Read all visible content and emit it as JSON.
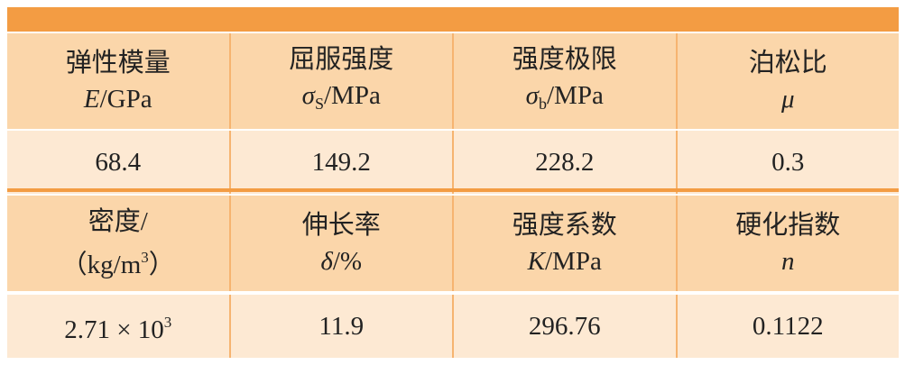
{
  "table": {
    "groups": [
      {
        "names": [
          "弹性模量",
          "屈服强度",
          "强度极限",
          "泊松比"
        ],
        "units": [
          [
            {
              "text": "E",
              "style": "italic"
            },
            {
              "text": "/GPa"
            }
          ],
          [
            {
              "text": "σ",
              "style": "italic"
            },
            {
              "text": "S",
              "style": "sub"
            },
            {
              "text": "/MPa"
            }
          ],
          [
            {
              "text": "σ",
              "style": "italic"
            },
            {
              "text": "b",
              "style": "sub"
            },
            {
              "text": "/MPa"
            }
          ],
          [
            {
              "text": "μ",
              "style": "italic"
            }
          ]
        ],
        "values": [
          [
            {
              "text": "68.4"
            }
          ],
          [
            {
              "text": "149.2"
            }
          ],
          [
            {
              "text": "228.2"
            }
          ],
          [
            {
              "text": "0.3"
            }
          ]
        ]
      },
      {
        "names": [
          "密度/",
          "伸长率",
          "强度系数",
          "硬化指数"
        ],
        "units": [
          [
            {
              "text": "（kg/m"
            },
            {
              "text": "3",
              "style": "sup"
            },
            {
              "text": "）"
            }
          ],
          [
            {
              "text": "δ",
              "style": "italic"
            },
            {
              "text": "/%"
            }
          ],
          [
            {
              "text": "K",
              "style": "italic"
            },
            {
              "text": "/MPa"
            }
          ],
          [
            {
              "text": "n",
              "style": "italic"
            }
          ]
        ],
        "values": [
          [
            {
              "text": "2.71 × 10"
            },
            {
              "text": "3",
              "style": "sup"
            }
          ],
          [
            {
              "text": "11.9"
            }
          ],
          [
            {
              "text": "296.76"
            }
          ],
          [
            {
              "text": "0.1122"
            }
          ]
        ]
      }
    ]
  }
}
